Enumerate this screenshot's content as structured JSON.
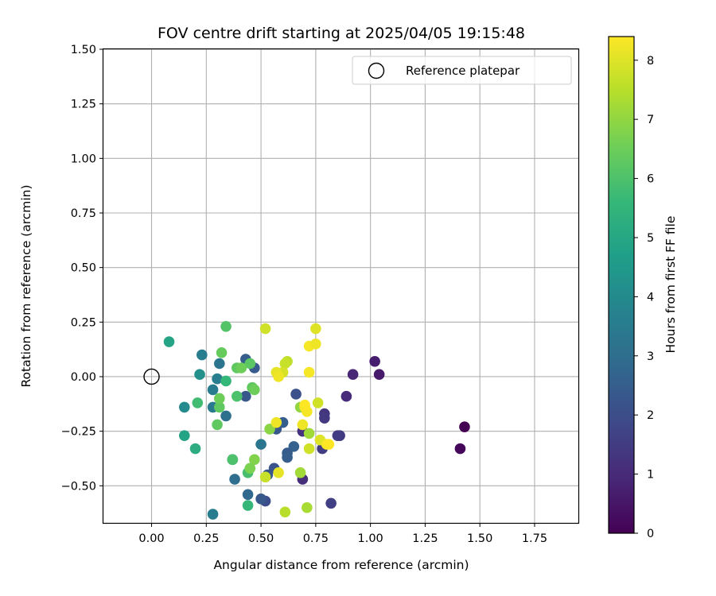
{
  "chart_data": {
    "type": "scatter",
    "title": "FOV centre drift starting at 2025/04/05 19:15:48",
    "xlabel": "Angular distance from reference (arcmin)",
    "ylabel": "Rotation from reference (arcmin)",
    "xlim": [
      -0.22,
      1.95
    ],
    "ylim": [
      -0.67,
      1.5
    ],
    "xticks": [
      "0.00",
      "0.25",
      "0.50",
      "0.75",
      "1.00",
      "1.25",
      "1.50",
      "1.75"
    ],
    "xtick_values": [
      0,
      0.25,
      0.5,
      0.75,
      1.0,
      1.25,
      1.5,
      1.75
    ],
    "yticks": [
      "1.50",
      "1.25",
      "1.00",
      "0.75",
      "0.50",
      "0.25",
      "0.00",
      "−0.25",
      "−0.50"
    ],
    "ytick_values": [
      1.5,
      1.25,
      1.0,
      0.75,
      0.5,
      0.25,
      0.0,
      -0.25,
      -0.5
    ],
    "grid": true,
    "legend": {
      "position": "top-right",
      "label": "Reference platepar"
    },
    "reference_point": {
      "x": 0.0,
      "y": 0.0
    },
    "colorbar": {
      "label": "Hours from first FF file",
      "range": [
        0,
        8.4
      ],
      "ticks": [
        "0",
        "1",
        "2",
        "3",
        "4",
        "5",
        "6",
        "7",
        "8"
      ],
      "tick_values": [
        0,
        1,
        2,
        3,
        4,
        5,
        6,
        7,
        8
      ],
      "colormap": "viridis",
      "colors": [
        "#440154",
        "#482878",
        "#3e4989",
        "#31688e",
        "#26828e",
        "#1f9e89",
        "#35b779",
        "#6ece58",
        "#b5de2b",
        "#fde725"
      ]
    },
    "points": [
      {
        "x": 1.43,
        "y": -0.23,
        "c": 0.0
      },
      {
        "x": 1.41,
        "y": -0.33,
        "c": 0.15
      },
      {
        "x": 1.04,
        "y": 0.01,
        "c": 0.6
      },
      {
        "x": 1.02,
        "y": 0.07,
        "c": 0.7
      },
      {
        "x": 0.92,
        "y": 0.01,
        "c": 0.9
      },
      {
        "x": 0.89,
        "y": -0.09,
        "c": 1.0
      },
      {
        "x": 0.86,
        "y": -0.27,
        "c": 1.4
      },
      {
        "x": 0.85,
        "y": -0.27,
        "c": 1.5
      },
      {
        "x": 0.82,
        "y": -0.58,
        "c": 1.6
      },
      {
        "x": 0.79,
        "y": -0.17,
        "c": 1.3
      },
      {
        "x": 0.79,
        "y": -0.19,
        "c": 1.4
      },
      {
        "x": 0.78,
        "y": -0.33,
        "c": 1.5
      },
      {
        "x": 0.69,
        "y": -0.25,
        "c": 1.2
      },
      {
        "x": 0.69,
        "y": -0.47,
        "c": 1.1
      },
      {
        "x": 0.66,
        "y": -0.08,
        "c": 2.1
      },
      {
        "x": 0.65,
        "y": -0.32,
        "c": 2.6
      },
      {
        "x": 0.62,
        "y": -0.35,
        "c": 2.4
      },
      {
        "x": 0.62,
        "y": -0.37,
        "c": 2.5
      },
      {
        "x": 0.6,
        "y": -0.21,
        "c": 2.5
      },
      {
        "x": 0.57,
        "y": -0.24,
        "c": 2.3
      },
      {
        "x": 0.56,
        "y": -0.42,
        "c": 2.2
      },
      {
        "x": 0.53,
        "y": -0.45,
        "c": 2.3
      },
      {
        "x": 0.52,
        "y": -0.57,
        "c": 2.0
      },
      {
        "x": 0.5,
        "y": -0.56,
        "c": 2.3
      },
      {
        "x": 0.5,
        "y": -0.31,
        "c": 3.3
      },
      {
        "x": 0.47,
        "y": 0.04,
        "c": 2.4
      },
      {
        "x": 0.44,
        "y": -0.54,
        "c": 2.8
      },
      {
        "x": 0.43,
        "y": 0.08,
        "c": 2.5
      },
      {
        "x": 0.43,
        "y": -0.09,
        "c": 2.3
      },
      {
        "x": 0.38,
        "y": -0.47,
        "c": 3.0
      },
      {
        "x": 0.37,
        "y": -0.38,
        "c": 2.8
      },
      {
        "x": 0.34,
        "y": -0.18,
        "c": 3.1
      },
      {
        "x": 0.31,
        "y": 0.06,
        "c": 3.3
      },
      {
        "x": 0.3,
        "y": -0.01,
        "c": 3.6
      },
      {
        "x": 0.28,
        "y": -0.14,
        "c": 3.4
      },
      {
        "x": 0.28,
        "y": -0.06,
        "c": 3.5
      },
      {
        "x": 0.28,
        "y": -0.63,
        "c": 3.6
      },
      {
        "x": 0.23,
        "y": 0.1,
        "c": 3.6
      },
      {
        "x": 0.22,
        "y": 0.01,
        "c": 4.2
      },
      {
        "x": 0.15,
        "y": -0.14,
        "c": 4.0
      },
      {
        "x": 0.08,
        "y": 0.16,
        "c": 4.9
      },
      {
        "x": 0.15,
        "y": -0.27,
        "c": 4.9
      },
      {
        "x": 0.2,
        "y": -0.33,
        "c": 5.2
      },
      {
        "x": 0.21,
        "y": -0.12,
        "c": 5.8
      },
      {
        "x": 0.34,
        "y": -0.02,
        "c": 5.6
      },
      {
        "x": 0.39,
        "y": -0.09,
        "c": 6.0
      },
      {
        "x": 0.31,
        "y": -0.14,
        "c": 6.3
      },
      {
        "x": 0.3,
        "y": -0.22,
        "c": 6.3
      },
      {
        "x": 0.31,
        "y": -0.1,
        "c": 6.5
      },
      {
        "x": 0.32,
        "y": 0.11,
        "c": 6.4
      },
      {
        "x": 0.34,
        "y": 0.23,
        "c": 6.1
      },
      {
        "x": 0.37,
        "y": -0.38,
        "c": 6.0
      },
      {
        "x": 0.44,
        "y": -0.44,
        "c": 5.9
      },
      {
        "x": 0.44,
        "y": -0.59,
        "c": 5.6
      },
      {
        "x": 0.45,
        "y": 0.06,
        "c": 6.2
      },
      {
        "x": 0.46,
        "y": -0.05,
        "c": 6.3
      },
      {
        "x": 0.47,
        "y": -0.06,
        "c": 6.5
      },
      {
        "x": 0.39,
        "y": 0.04,
        "c": 6.3
      },
      {
        "x": 0.41,
        "y": 0.04,
        "c": 6.5
      },
      {
        "x": 0.47,
        "y": -0.38,
        "c": 6.8
      },
      {
        "x": 0.45,
        "y": -0.42,
        "c": 6.7
      },
      {
        "x": 0.54,
        "y": -0.24,
        "c": 6.9
      },
      {
        "x": 0.68,
        "y": -0.14,
        "c": 7.0
      },
      {
        "x": 0.68,
        "y": -0.44,
        "c": 7.2
      },
      {
        "x": 0.72,
        "y": -0.26,
        "c": 7.2
      },
      {
        "x": 0.71,
        "y": -0.6,
        "c": 7.3
      },
      {
        "x": 0.61,
        "y": -0.62,
        "c": 7.5
      },
      {
        "x": 0.52,
        "y": -0.46,
        "c": 7.7
      },
      {
        "x": 0.52,
        "y": 0.22,
        "c": 7.8
      },
      {
        "x": 0.62,
        "y": 0.07,
        "c": 7.6
      },
      {
        "x": 0.61,
        "y": 0.06,
        "c": 7.7
      },
      {
        "x": 0.6,
        "y": 0.02,
        "c": 7.9
      },
      {
        "x": 0.76,
        "y": -0.12,
        "c": 7.8
      },
      {
        "x": 0.72,
        "y": -0.33,
        "c": 7.8
      },
      {
        "x": 0.77,
        "y": -0.29,
        "c": 8.0
      },
      {
        "x": 0.75,
        "y": 0.22,
        "c": 8.0
      },
      {
        "x": 0.57,
        "y": 0.02,
        "c": 8.1
      },
      {
        "x": 0.58,
        "y": 0.0,
        "c": 8.2
      },
      {
        "x": 0.57,
        "y": -0.21,
        "c": 8.2
      },
      {
        "x": 0.58,
        "y": -0.44,
        "c": 8.1
      },
      {
        "x": 0.69,
        "y": -0.22,
        "c": 8.2
      },
      {
        "x": 0.72,
        "y": 0.14,
        "c": 8.3
      },
      {
        "x": 0.75,
        "y": 0.15,
        "c": 8.2
      },
      {
        "x": 0.72,
        "y": 0.02,
        "c": 8.3
      },
      {
        "x": 0.7,
        "y": -0.14,
        "c": 8.3
      },
      {
        "x": 0.71,
        "y": -0.16,
        "c": 8.3
      },
      {
        "x": 0.7,
        "y": -0.13,
        "c": 8.4
      },
      {
        "x": 0.8,
        "y": -0.31,
        "c": 8.3
      },
      {
        "x": 0.81,
        "y": -0.31,
        "c": 8.4
      }
    ]
  }
}
